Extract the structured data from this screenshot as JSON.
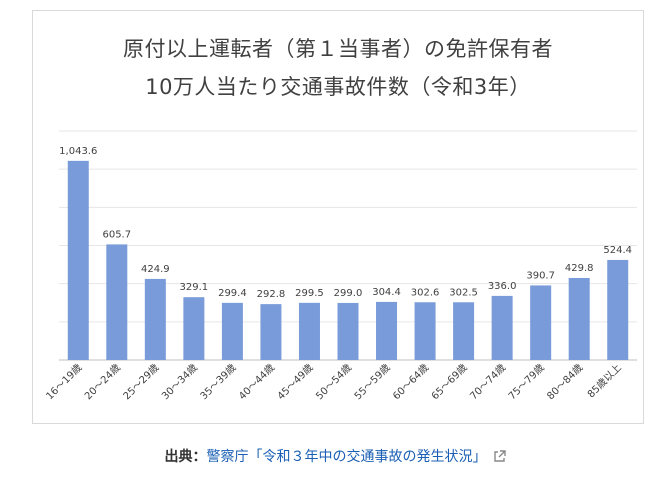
{
  "chart_data": {
    "type": "bar",
    "title_line1": "原付以上運転者（第１当事者）の免許保有者",
    "title_line2": "10万人当たり交通事故件数（令和3年）",
    "categories": [
      "16～19歳",
      "20～24歳",
      "25～29歳",
      "30～34歳",
      "35～39歳",
      "40～44歳",
      "45～49歳",
      "50～54歳",
      "55～59歳",
      "60～64歳",
      "65～69歳",
      "70～74歳",
      "75～79歳",
      "80～84歳",
      "85歳以上"
    ],
    "values": [
      1043.6,
      605.7,
      424.9,
      329.1,
      299.4,
      292.8,
      299.5,
      299.0,
      304.4,
      302.6,
      302.5,
      336.0,
      390.7,
      429.8,
      524.4
    ],
    "value_labels": [
      "1,043.6",
      "605.7",
      "424.9",
      "329.1",
      "299.4",
      "292.8",
      "299.5",
      "299.0",
      "304.4",
      "302.6",
      "302.5",
      "336.0",
      "390.7",
      "429.8",
      "524.4"
    ],
    "ylim": [
      0,
      1200
    ],
    "grid": true,
    "bar_color": "#7a9bd9"
  },
  "source": {
    "label": "出典：",
    "link_text": "警察庁「令和３年中の交通事故の発生状況」",
    "icon": "external-link-icon"
  }
}
